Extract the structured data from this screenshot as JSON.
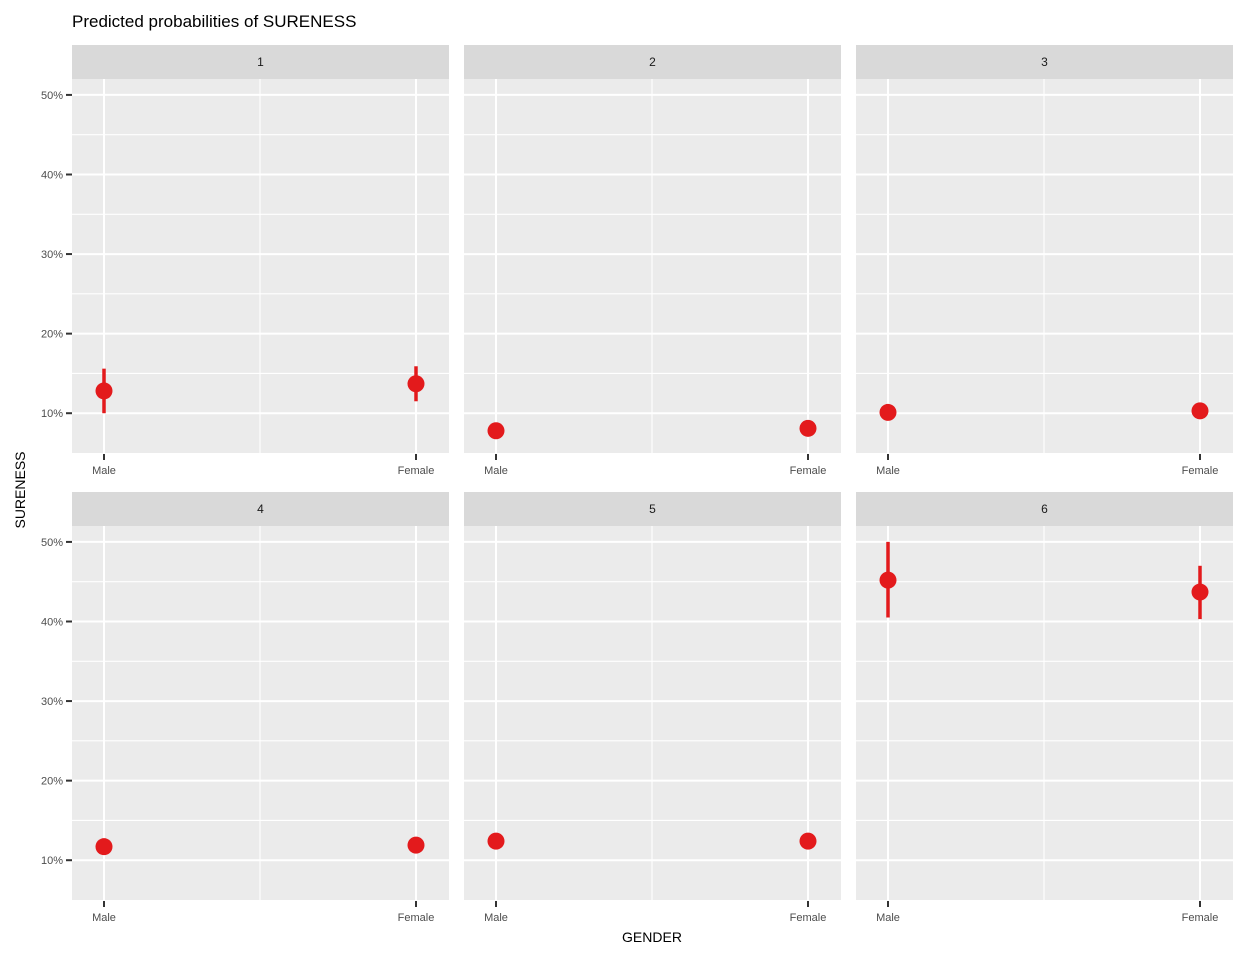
{
  "colors": {
    "point": "#e31a1c",
    "panel_background": "#ebebeb",
    "strip_background": "#d9d9d9",
    "grid": "#ffffff",
    "tick": "#333333"
  },
  "chart_data": {
    "type": "scatter",
    "title": "Predicted probabilities of SURENESS",
    "xlabel": "GENDER",
    "ylabel": "SURENESS",
    "categories": [
      "Male",
      "Female"
    ],
    "ylim": [
      0.05,
      0.52
    ],
    "yticks": [
      0.1,
      0.2,
      0.3,
      0.4,
      0.5
    ],
    "ytick_labels": [
      "10%",
      "20%",
      "30%",
      "40%",
      "50%"
    ],
    "grid": true,
    "facets": [
      {
        "label": "1",
        "estimates": [
          0.128,
          0.137
        ],
        "ci_low": [
          0.1,
          0.115
        ],
        "ci_high": [
          0.156,
          0.159
        ]
      },
      {
        "label": "2",
        "estimates": [
          0.078,
          0.081
        ],
        "ci_low": [
          0.073,
          0.076
        ],
        "ci_high": [
          0.083,
          0.086
        ]
      },
      {
        "label": "3",
        "estimates": [
          0.101,
          0.103
        ],
        "ci_low": [
          0.096,
          0.098
        ],
        "ci_high": [
          0.106,
          0.108
        ]
      },
      {
        "label": "4",
        "estimates": [
          0.117,
          0.119
        ],
        "ci_low": [
          0.112,
          0.114
        ],
        "ci_high": [
          0.122,
          0.124
        ]
      },
      {
        "label": "5",
        "estimates": [
          0.124,
          0.124
        ],
        "ci_low": [
          0.119,
          0.119
        ],
        "ci_high": [
          0.129,
          0.129
        ]
      },
      {
        "label": "6",
        "estimates": [
          0.452,
          0.437
        ],
        "ci_low": [
          0.405,
          0.403
        ],
        "ci_high": [
          0.5,
          0.47
        ]
      }
    ]
  }
}
